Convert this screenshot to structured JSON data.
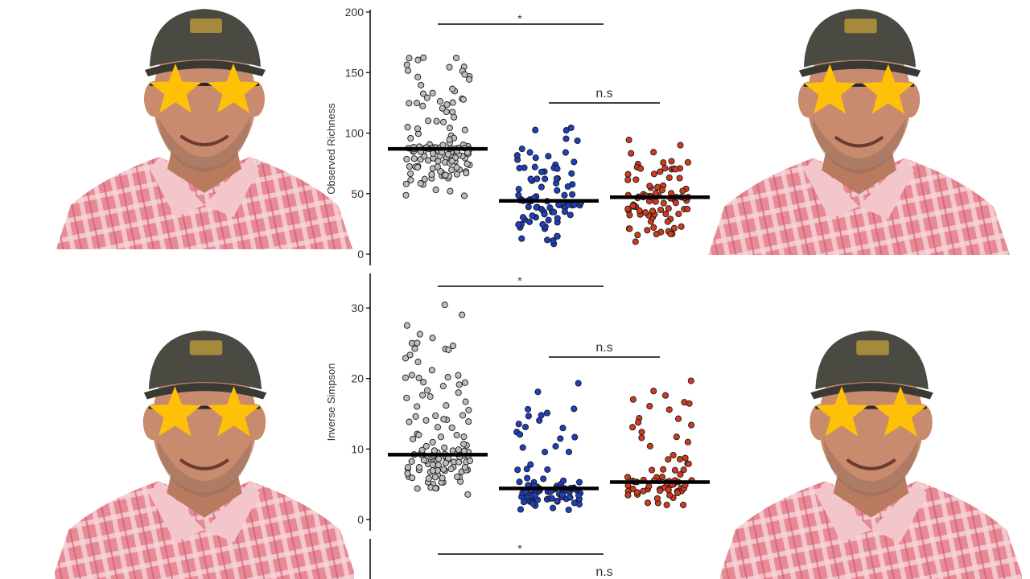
{
  "colors": {
    "background": "#ffffff",
    "axis": "#000000",
    "group_1": "#bdbdbd",
    "group_2": "#1f3fbf",
    "group_3": "#d23a1e",
    "point_edge": "#1a1a1a",
    "star": "#ffc107",
    "shirt": "#e88a96",
    "cap": "#4b4a42",
    "skin": "#c98b6e"
  },
  "photos": [
    {
      "name": "presenter-photo-top-left",
      "icon": "person-with-star-glasses"
    },
    {
      "name": "presenter-photo-top-right",
      "icon": "person-with-star-glasses"
    },
    {
      "name": "presenter-photo-bottom-left",
      "icon": "person-with-star-glasses"
    },
    {
      "name": "presenter-photo-bottom-right",
      "icon": "person-with-star-glasses"
    }
  ],
  "chart_data": [
    {
      "type": "scatter",
      "subtype": "jittered strip plot with mean bars",
      "ylabel": "Observed Richness",
      "xlabel": "",
      "ylim": [
        0,
        200
      ],
      "yticks": [
        0,
        50,
        100,
        150,
        200
      ],
      "grid": false,
      "groups": [
        {
          "color_key": "group_1",
          "mean": 87,
          "n": 130,
          "min": 46,
          "max": 170
        },
        {
          "color_key": "group_2",
          "mean": 44,
          "n": 90,
          "min": 2,
          "max": 107
        },
        {
          "color_key": "group_3",
          "mean": 47,
          "n": 90,
          "min": 9,
          "max": 103
        }
      ],
      "annotations": [
        {
          "text": "*",
          "from_group": 1,
          "to_group": 2
        },
        {
          "text": "n.s",
          "from_group": 2,
          "to_group": 3
        }
      ]
    },
    {
      "type": "scatter",
      "subtype": "jittered strip plot with mean bars",
      "ylabel": "Inverse Simpson",
      "xlabel": "",
      "ylim": [
        0,
        30
      ],
      "yticks": [
        0,
        10,
        20,
        30
      ],
      "grid": false,
      "groups": [
        {
          "color_key": "group_1",
          "mean": 9.2,
          "n": 130,
          "min": 3.1,
          "max": 31
        },
        {
          "color_key": "group_2",
          "mean": 4.4,
          "n": 90,
          "min": 1,
          "max": 20.7
        },
        {
          "color_key": "group_3",
          "mean": 5.3,
          "n": 75,
          "min": 1.3,
          "max": 20.3
        }
      ],
      "annotations": [
        {
          "text": "*",
          "from_group": 1,
          "to_group": 2
        },
        {
          "text": "n.s",
          "from_group": 2,
          "to_group": 3
        }
      ]
    },
    {
      "type": "scatter",
      "subtype": "jittered strip plot with mean bars (cropped)",
      "ylabel": "",
      "yticks": [],
      "grid": false,
      "annotations": [
        {
          "text": "*",
          "from_group": 1,
          "to_group": 2
        },
        {
          "text": "n.s",
          "from_group": 2,
          "to_group": 3
        }
      ]
    }
  ]
}
